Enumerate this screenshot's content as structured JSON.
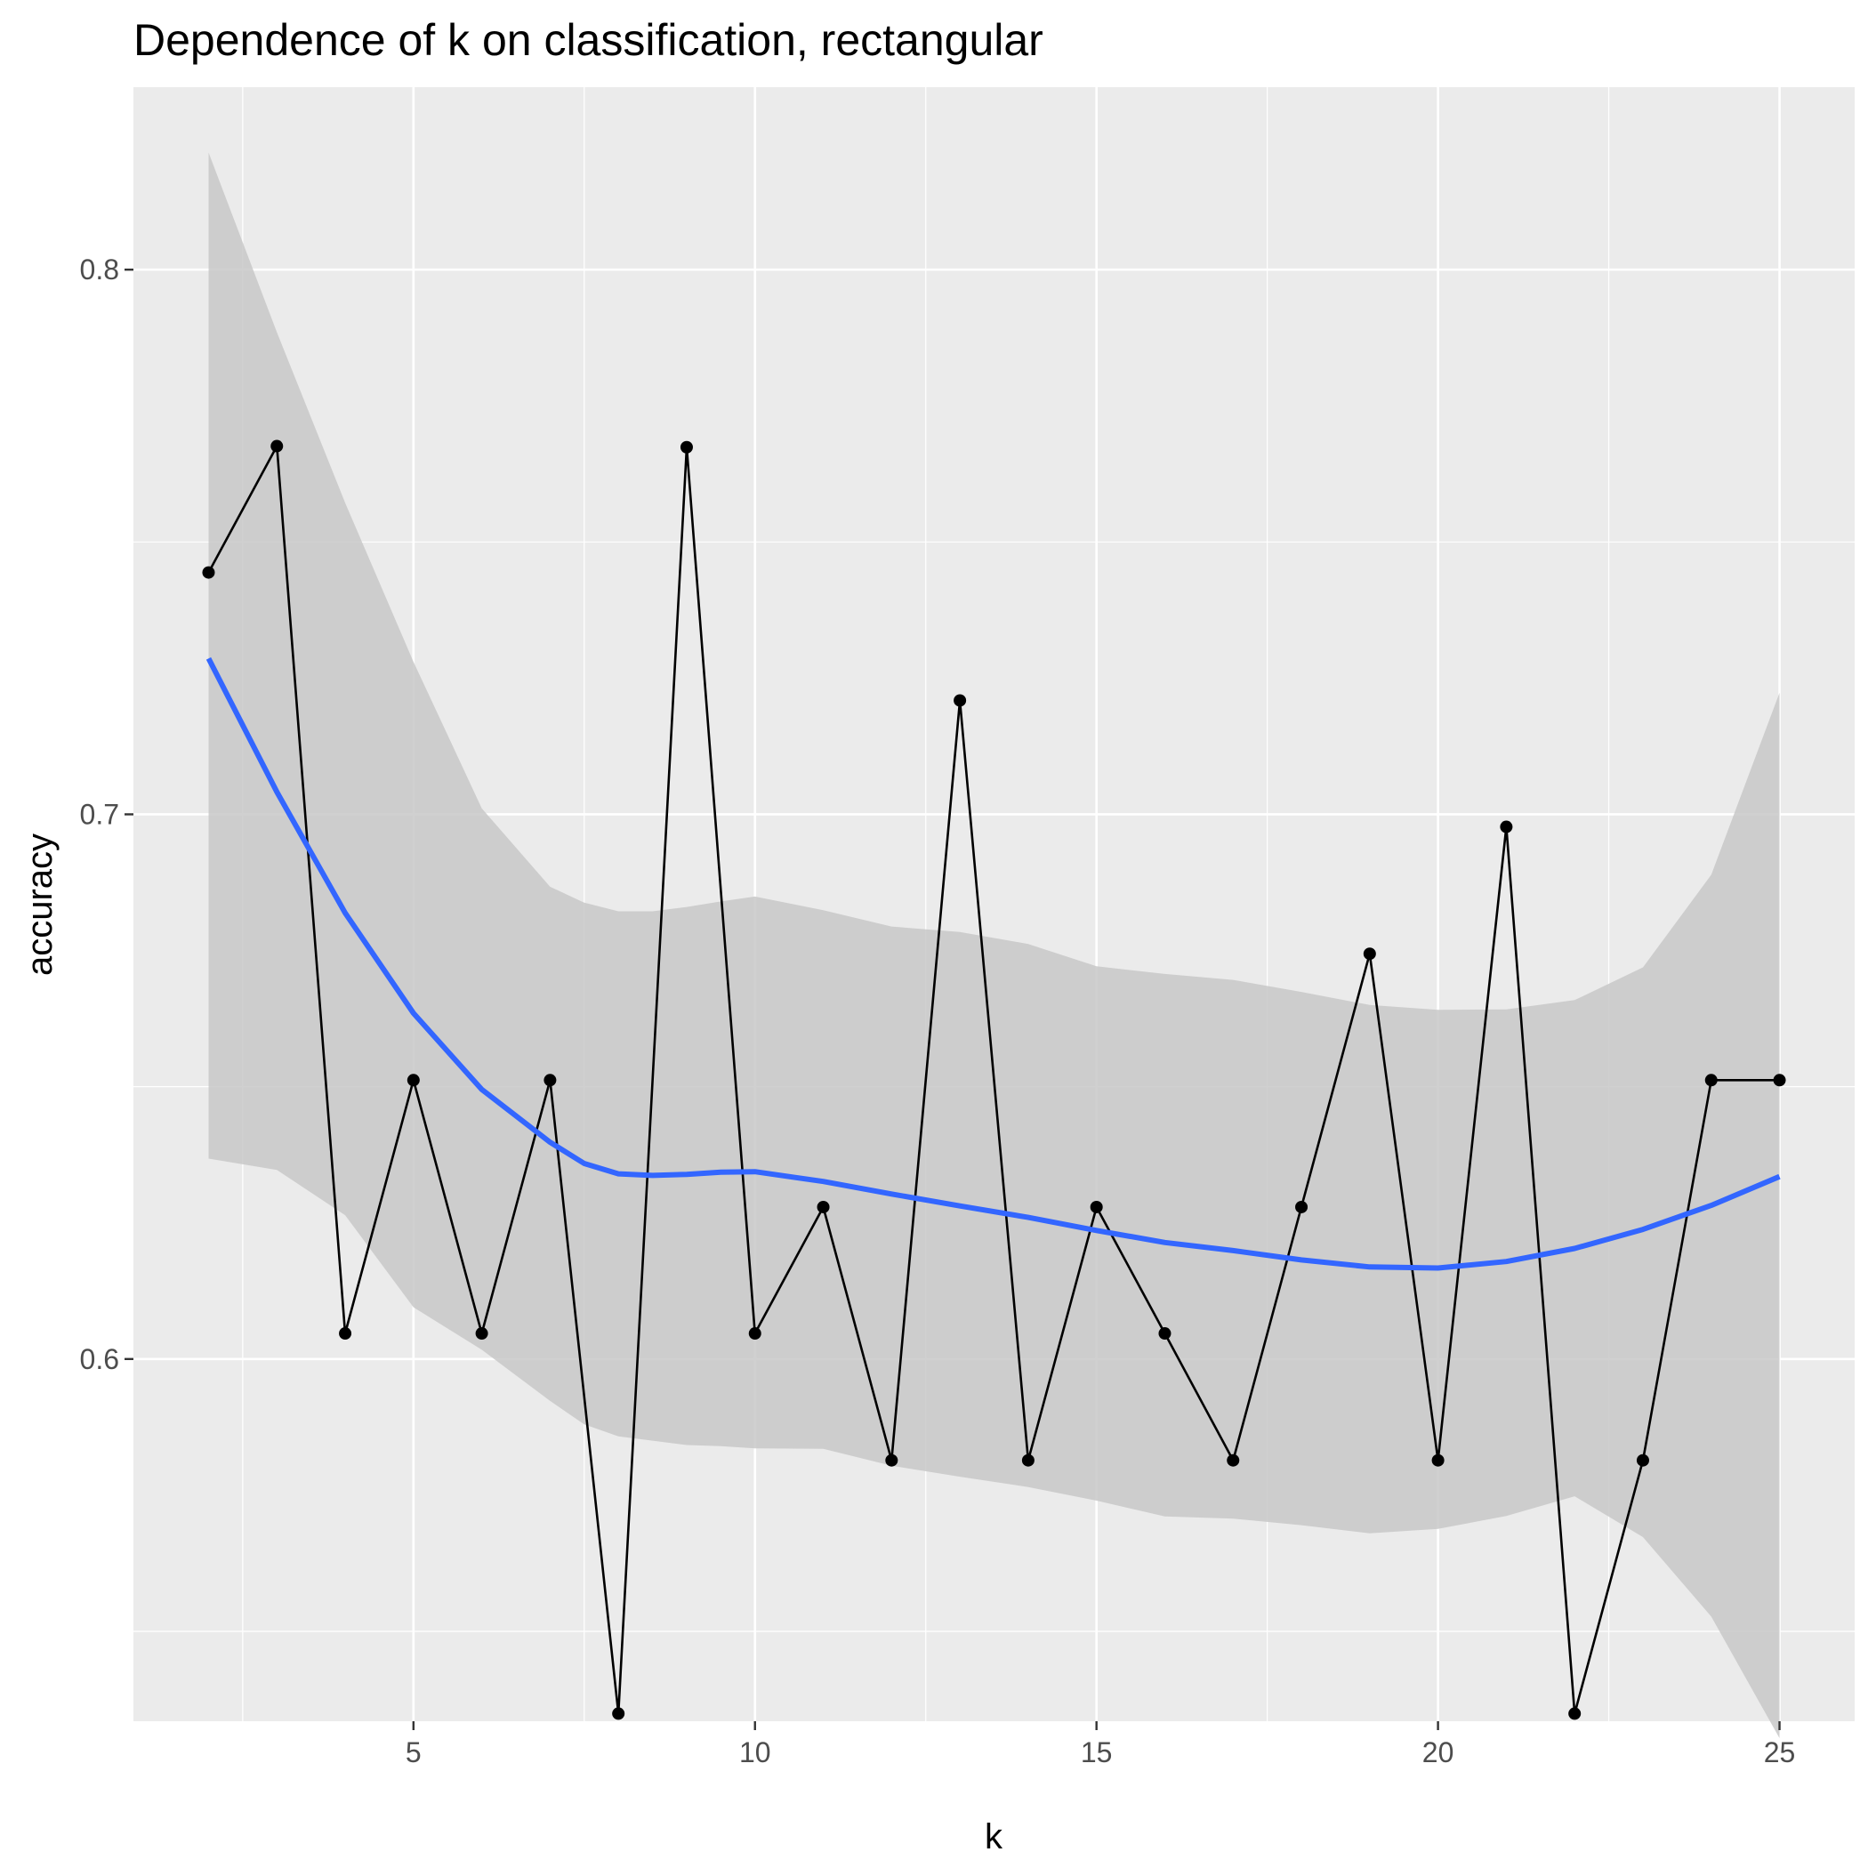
{
  "chart_data": {
    "type": "line",
    "title": "Dependence of k on classification, rectangular",
    "xlabel": "k",
    "ylabel": "accuracy",
    "xlim": [
      0.9,
      26.1
    ],
    "ylim": [
      0.5335,
      0.8335
    ],
    "x_ticks": [
      5,
      10,
      15,
      20,
      25
    ],
    "x_tick_labels": [
      "5",
      "10",
      "15",
      "20",
      "25"
    ],
    "y_ticks": [
      0.6,
      0.7,
      0.8
    ],
    "y_tick_labels": [
      "0.6",
      "0.7",
      "0.8"
    ],
    "grid": true,
    "legend": "none",
    "series": [
      {
        "x": [
          2,
          3,
          4,
          5,
          6,
          7,
          8,
          9,
          10,
          11,
          12,
          13,
          14,
          15,
          16,
          17,
          18,
          19,
          20,
          21,
          22,
          23,
          24,
          25
        ],
        "y": [
          0.7444,
          0.7676,
          0.6047,
          0.6512,
          0.6047,
          0.6512,
          0.5349,
          0.7674,
          0.6047,
          0.6279,
          0.5814,
          0.7209,
          0.5814,
          0.6279,
          0.6047,
          0.5814,
          0.6279,
          0.6744,
          0.5814,
          0.6977,
          0.5349,
          0.5814,
          0.6512,
          0.6512
        ]
      }
    ],
    "smooth": {
      "x": [
        2,
        3,
        4,
        5,
        6,
        7,
        7.5,
        8,
        8.5,
        9,
        9.5,
        10,
        11,
        12,
        13,
        14,
        15,
        16,
        17,
        18,
        19,
        20,
        21,
        22,
        23,
        24,
        25
      ],
      "y": [
        0.7286,
        0.7041,
        0.6819,
        0.6635,
        0.6495,
        0.6398,
        0.6359,
        0.634,
        0.6337,
        0.6339,
        0.6343,
        0.6344,
        0.6326,
        0.6303,
        0.6281,
        0.626,
        0.6236,
        0.6214,
        0.6199,
        0.6182,
        0.6169,
        0.6167,
        0.6179,
        0.6203,
        0.6238,
        0.6282,
        0.6335
      ],
      "upper": [
        0.8215,
        0.7885,
        0.7572,
        0.728,
        0.7011,
        0.6867,
        0.6838,
        0.6822,
        0.6822,
        0.683,
        0.684,
        0.6849,
        0.6824,
        0.6794,
        0.6784,
        0.6762,
        0.6721,
        0.6707,
        0.6696,
        0.6674,
        0.665,
        0.6641,
        0.6642,
        0.6659,
        0.6719,
        0.6889,
        0.7223
      ],
      "lower": [
        0.6368,
        0.6347,
        0.6264,
        0.6095,
        0.6017,
        0.5923,
        0.588,
        0.5858,
        0.585,
        0.5842,
        0.584,
        0.5836,
        0.5835,
        0.5804,
        0.5784,
        0.5765,
        0.574,
        0.5711,
        0.5707,
        0.5695,
        0.568,
        0.5688,
        0.5712,
        0.5748,
        0.5673,
        0.5527,
        0.5304
      ]
    },
    "colors": {
      "panel": "#ebebeb",
      "grid": "#ffffff",
      "line": "#000000",
      "point": "#000000",
      "smooth": "#3366ff",
      "ribbon": "#c8c8c8",
      "tick_label": "#4d4d4d",
      "tick": "#333333"
    }
  }
}
